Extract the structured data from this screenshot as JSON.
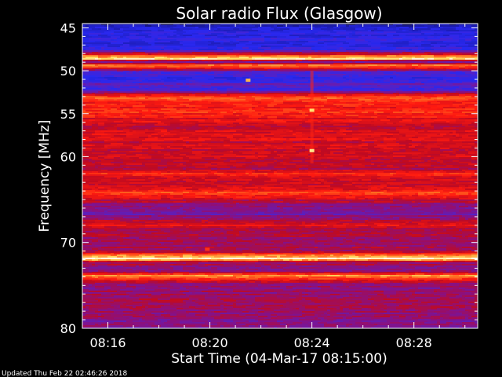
{
  "chart_data": {
    "type": "heatmap",
    "title": "Solar radio Flux (Glasgow)",
    "xlabel": "Start Time (04-Mar-17 08:15:00)",
    "ylabel": "Frequency [MHz]",
    "x_unit": "minutes after 08:15:00",
    "xlim": [
      0,
      15.5
    ],
    "ylim": [
      44.5,
      80
    ],
    "x_ticks": [
      {
        "value": 1,
        "label": "08:16"
      },
      {
        "value": 5,
        "label": "08:20"
      },
      {
        "value": 9,
        "label": "08:24"
      },
      {
        "value": 13,
        "label": "08:28"
      }
    ],
    "y_ticks": [
      {
        "value": 45,
        "label": "45"
      },
      {
        "value": 50,
        "label": "50"
      },
      {
        "value": 55,
        "label": "55"
      },
      {
        "value": 60,
        "label": "60"
      },
      {
        "value": 70,
        "label": "70"
      },
      {
        "value": 80,
        "label": "80"
      }
    ],
    "colormap": [
      "#0a0a2a",
      "#1a1aa8",
      "#2828f0",
      "#5a20c0",
      "#8a1080",
      "#c00a20",
      "#ff1a10",
      "#ff6a20",
      "#ffe060",
      "#ffffff"
    ],
    "intensity_profile": [
      {
        "freq": 44.5,
        "level": 0.06
      },
      {
        "freq": 45.1,
        "level": 0.18
      },
      {
        "freq": 45.8,
        "level": 0.22
      },
      {
        "freq": 47.5,
        "level": 0.24
      },
      {
        "freq": 48.6,
        "level": 0.98
      },
      {
        "freq": 48.9,
        "level": 0.3
      },
      {
        "freq": 49.4,
        "level": 0.8
      },
      {
        "freq": 50.2,
        "level": 0.3
      },
      {
        "freq": 51.0,
        "level": 0.22
      },
      {
        "freq": 51.7,
        "level": 0.34
      },
      {
        "freq": 52.3,
        "level": 0.28
      },
      {
        "freq": 52.8,
        "level": 0.66
      },
      {
        "freq": 53.2,
        "level": 0.72
      },
      {
        "freq": 53.8,
        "level": 0.64
      },
      {
        "freq": 54.6,
        "level": 0.68
      },
      {
        "freq": 55.4,
        "level": 0.62
      },
      {
        "freq": 56.5,
        "level": 0.56
      },
      {
        "freq": 57.5,
        "level": 0.6
      },
      {
        "freq": 58.7,
        "level": 0.57
      },
      {
        "freq": 59.8,
        "level": 0.58
      },
      {
        "freq": 61.5,
        "level": 0.52
      },
      {
        "freq": 62.0,
        "level": 0.66
      },
      {
        "freq": 63.2,
        "level": 0.54
      },
      {
        "freq": 64.2,
        "level": 0.72
      },
      {
        "freq": 65.5,
        "level": 0.46
      },
      {
        "freq": 66.8,
        "level": 0.4
      },
      {
        "freq": 67.9,
        "level": 0.64
      },
      {
        "freq": 68.8,
        "level": 0.5
      },
      {
        "freq": 69.8,
        "level": 0.48
      },
      {
        "freq": 71.0,
        "level": 0.52
      },
      {
        "freq": 71.9,
        "level": 0.98
      },
      {
        "freq": 72.3,
        "level": 0.5
      },
      {
        "freq": 73.3,
        "level": 0.46
      },
      {
        "freq": 73.9,
        "level": 0.82
      },
      {
        "freq": 75.0,
        "level": 0.44
      },
      {
        "freq": 77.0,
        "level": 0.5
      },
      {
        "freq": 78.5,
        "level": 0.46
      },
      {
        "freq": 79.5,
        "level": 0.42
      },
      {
        "freq": 80.0,
        "level": 0.4
      }
    ],
    "bursts": [
      {
        "time": 9.0,
        "freq_start": 50,
        "freq_end": 60.8,
        "level": 0.68
      },
      {
        "time": 9.0,
        "freq": 54.6,
        "level": 0.9
      },
      {
        "time": 9.0,
        "freq": 59.3,
        "level": 0.92
      },
      {
        "time": 6.5,
        "freq": 51.1,
        "level": 0.85
      },
      {
        "time": 4.9,
        "freq": 70.8,
        "level": 0.7
      }
    ]
  },
  "footer": {
    "updated": "Updated Thu Feb 22 02:46:26 2018"
  }
}
